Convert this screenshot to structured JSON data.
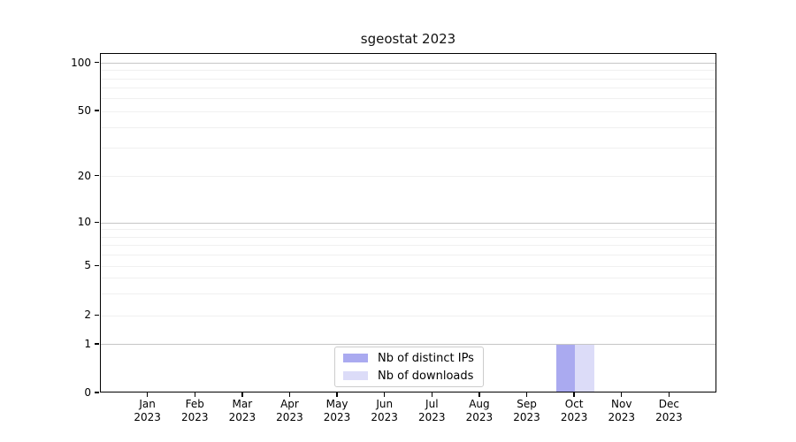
{
  "chart_data": {
    "type": "bar",
    "title": "sgeostat 2023",
    "categories": [
      "Jan",
      "Feb",
      "Mar",
      "Apr",
      "May",
      "Jun",
      "Jul",
      "Aug",
      "Sep",
      "Oct",
      "Nov",
      "Dec"
    ],
    "category_year": "2023",
    "series": [
      {
        "name": "Nb of distinct IPs",
        "color": "#aaaaf0",
        "values": [
          0,
          0,
          0,
          0,
          0,
          0,
          0,
          0,
          0,
          1,
          0,
          0
        ]
      },
      {
        "name": "Nb of downloads",
        "color": "#dcdcf8",
        "values": [
          0,
          0,
          0,
          0,
          0,
          0,
          0,
          0,
          0,
          1,
          0,
          0
        ]
      }
    ],
    "xlabel": "",
    "ylabel": "",
    "y_axis": {
      "scale": "symlog",
      "tick_labels": [
        "0",
        "1",
        "2",
        "5",
        "10",
        "20",
        "50",
        "100"
      ],
      "ticks": [
        0,
        1,
        2,
        5,
        10,
        20,
        50,
        100
      ],
      "major_gridlines": [
        1,
        10,
        100
      ],
      "minor_gridlines": [
        2,
        3,
        4,
        5,
        6,
        7,
        8,
        9,
        20,
        30,
        40,
        50,
        60,
        70,
        80,
        90
      ],
      "ylim": [
        0,
        110
      ]
    },
    "legend": {
      "position": "bottom-center",
      "entries": [
        "Nb of distinct IPs",
        "Nb of downloads"
      ]
    },
    "colors": {
      "background": "#ffffff",
      "axis": "#000000",
      "major_grid": "#c6c6c6",
      "minor_grid": "#f0f0f0",
      "bar_distinct_ips": "#aaaaf0",
      "bar_downloads": "#dcdcf8"
    },
    "grid": true
  }
}
